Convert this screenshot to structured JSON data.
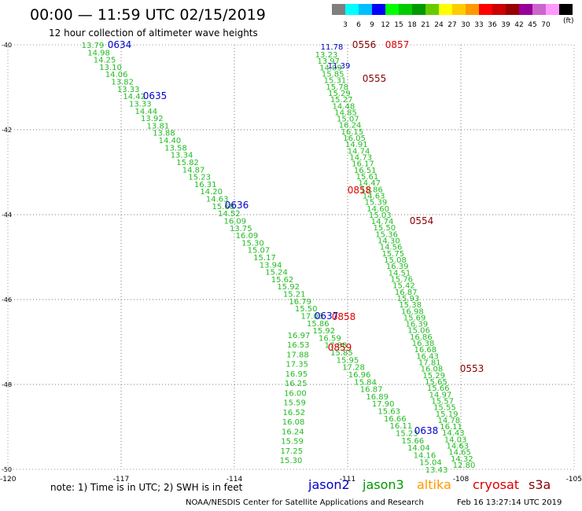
{
  "header": {
    "title": "00:00 — 11:59 UTC 02/15/2019",
    "subtitle": "12 hour collection of altimeter wave heights"
  },
  "color_scale": {
    "colors": [
      "#7f7f7f",
      "#00ffff",
      "#00bfff",
      "#0000ff",
      "#00ff00",
      "#00cc00",
      "#009900",
      "#66cc00",
      "#ffff00",
      "#ffcc00",
      "#ff9900",
      "#ff0000",
      "#cc0000",
      "#990000",
      "#990099",
      "#cc66cc",
      "#ff99ff",
      "#000000"
    ],
    "labels": [
      "3",
      "6",
      "9",
      "12",
      "15",
      "18",
      "21",
      "24",
      "27",
      "30",
      "33",
      "36",
      "39",
      "42",
      "45",
      "70"
    ],
    "unit": "(ft)"
  },
  "axes": {
    "lat_labels": [
      "-40",
      "-42",
      "-44",
      "-46",
      "-48",
      "-50"
    ],
    "lon_labels": [
      "-120",
      "-117",
      "-114",
      "-111",
      "-108",
      "-105"
    ]
  },
  "chart_data": {
    "type": "scatter",
    "xlim": [
      -120,
      -105
    ],
    "ylim": [
      -50,
      -40
    ],
    "tracks": [
      {
        "name": "jason3 track A",
        "color": "#22bb22",
        "values": [
          "13.79",
          "14.98",
          "14.25",
          "13.10",
          "14.06",
          "13.82",
          "13.33",
          "14.42",
          "13.33",
          "14.44",
          "13.92",
          "13.81",
          "13.88",
          "14.40",
          "13.58",
          "13.34",
          "15.82",
          "14.87",
          "15.23",
          "16.31",
          "14.20",
          "14.63",
          "15.68",
          "14.52",
          "16.09",
          "13.75",
          "16.09",
          "15.30",
          "15.07",
          "15.17",
          "13.94",
          "15.24",
          "15.62",
          "15.92",
          "15.21",
          "16.79",
          "15.50",
          "17.08",
          "15.86",
          "15.92",
          "16.59",
          "17.88",
          "15.85",
          "15.95",
          "17.28",
          "16.96",
          "15.84",
          "16.87",
          "16.89",
          "17.90",
          "15.63",
          "16.66",
          "16.11",
          "15.23",
          "15.66",
          "14.04",
          "14.16",
          "15.04",
          "13.43"
        ]
      },
      {
        "name": "jason3 track B",
        "color": "#22bb22",
        "values": [
          "13.23",
          "13.97",
          "14.09",
          "15.85",
          "15.31",
          "15.78",
          "15.29",
          "15.27",
          "14.48",
          "14.85",
          "15.07",
          "16.24",
          "16.15",
          "16.05",
          "14.91",
          "14.74",
          "14.73",
          "16.17",
          "16.51",
          "15.61",
          "14.47",
          "15.86",
          "14.63",
          "15.39",
          "14.60",
          "15.03",
          "14.74",
          "15.50",
          "15.36",
          "14.30",
          "14.56",
          "15.75",
          "15.08",
          "16.39",
          "14.51",
          "15.76",
          "15.42",
          "16.87",
          "15.93",
          "15.38",
          "16.98",
          "15.69",
          "16.39",
          "15.06",
          "16.86",
          "16.38",
          "16.68",
          "16.43",
          "17.81",
          "16.08",
          "15.29",
          "15.65",
          "15.66",
          "14.97",
          "15.57",
          "15.55",
          "15.19",
          "14.78",
          "16.11",
          "14.43",
          "14.03",
          "14.63",
          "14.65",
          "14.32",
          "12.80"
        ]
      },
      {
        "name": "jason3 track C",
        "color": "#22bb22",
        "values": [
          "16.97",
          "16.53",
          "17.88",
          "17.35",
          "16.95",
          "16.25",
          "16.00",
          "15.59",
          "16.52",
          "16.08",
          "16.24",
          "15.59",
          "17.25",
          "15.30"
        ]
      }
    ],
    "time_labels": [
      {
        "text": "0634",
        "color": "#0000cc"
      },
      {
        "text": "0635",
        "color": "#0000cc"
      },
      {
        "text": "0636",
        "color": "#0000cc"
      },
      {
        "text": "0637",
        "color": "#0000cc"
      },
      {
        "text": "0638",
        "color": "#0000cc"
      },
      {
        "text": "0556",
        "color": "#880000"
      },
      {
        "text": "0555",
        "color": "#880000"
      },
      {
        "text": "0554",
        "color": "#880000"
      },
      {
        "text": "0553",
        "color": "#880000"
      },
      {
        "text": "0857",
        "color": "#dd0000"
      },
      {
        "text": "0858",
        "color": "#dd0000"
      },
      {
        "text": "0858",
        "color": "#dd0000"
      },
      {
        "text": "0859",
        "color": "#dd0000"
      },
      {
        "text": "11.78",
        "color": "#0000cc"
      },
      {
        "text": "11.39",
        "color": "#0000cc"
      }
    ]
  },
  "note": "note: 1) Time is in UTC; 2) SWH is in feet",
  "legend": [
    {
      "label": "jason2",
      "color": "#0000cc"
    },
    {
      "label": "jason3",
      "color": "#009900"
    },
    {
      "label": "altika",
      "color": "#ff9900"
    },
    {
      "label": "cryosat",
      "color": "#dd0000"
    },
    {
      "label": "s3a",
      "color": "#880000"
    }
  ],
  "footer": {
    "left": "NOAA/NESDIS Center for Satellite Applications and Research",
    "right": "Feb 16 13:27:14 UTC 2019"
  }
}
